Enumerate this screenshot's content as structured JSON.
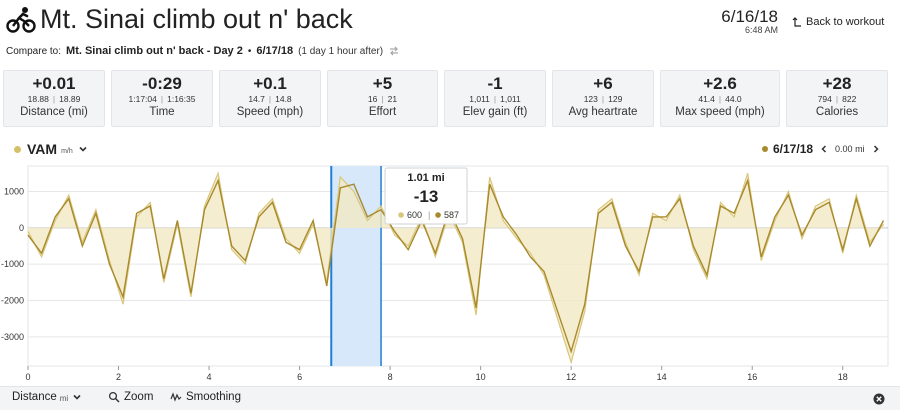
{
  "header": {
    "title": "Mt. Sinai climb out n' back",
    "date": "6/16/18",
    "time": "6:48 AM",
    "back_label": "Back to workout",
    "title_icon": "cyclist-icon",
    "back_icon": "return-arrow-icon"
  },
  "compare": {
    "label": "Compare to:",
    "workout": "Mt. Sinai climb out n' back - Day 2",
    "separator": "•",
    "date": "6/17/18",
    "note": "(1 day 1 hour after)",
    "swap_icon": "swap-icon"
  },
  "stats": [
    {
      "delta": "+0.01",
      "a": "18.88",
      "b": "18.89",
      "label": "Distance (mi)"
    },
    {
      "delta": "-0:29",
      "a": "1:17:04",
      "b": "1:16:35",
      "label": "Time"
    },
    {
      "delta": "+0.1",
      "a": "14.7",
      "b": "14.8",
      "label": "Speed (mph)"
    },
    {
      "delta": "+5",
      "a": "16",
      "b": "21",
      "label": "Effort"
    },
    {
      "delta": "-1",
      "a": "1,011",
      "b": "1,011",
      "label": "Elev gain (ft)"
    },
    {
      "delta": "+6",
      "a": "123",
      "b": "129",
      "label": "Avg heartrate"
    },
    {
      "delta": "+2.6",
      "a": "41.4",
      "b": "44.0",
      "label": "Max speed (mph)"
    },
    {
      "delta": "+28",
      "a": "794",
      "b": "822",
      "label": "Calories"
    }
  ],
  "metric": {
    "name": "VAM",
    "unit": "m/h",
    "chevron_icon": "chevron-down-icon"
  },
  "compare_nav": {
    "date": "6/17/18",
    "offset": "0.00 mi",
    "prev_icon": "chevron-left-icon",
    "next_icon": "chevron-right-icon"
  },
  "colors": {
    "series_a": "#d9c67a",
    "series_b": "#a88a2d",
    "fill": "#f3e9c4",
    "selection": "#d7e8fb",
    "selection_edge": "#1e7fd6"
  },
  "chart_data": {
    "type": "area",
    "xlabel": "",
    "ylabel": "",
    "xlim": [
      0,
      19
    ],
    "ylim": [
      -3800,
      1700
    ],
    "x_ticks": [
      0,
      2,
      4,
      6,
      8,
      10,
      12,
      14,
      16,
      18
    ],
    "y_ticks": [
      1000,
      0,
      -1000,
      -2000,
      -3000
    ],
    "grid": true,
    "selection": {
      "start": 6.7,
      "end": 7.8
    },
    "tooltip": {
      "distance": "1.01 mi",
      "delta": "-13",
      "a": "600",
      "b": "587"
    },
    "series": [
      {
        "x": [
          0,
          0.3,
          0.6,
          0.9,
          1.2,
          1.5,
          1.8,
          2.1,
          2.4,
          2.7,
          3,
          3.3,
          3.6,
          3.9,
          4.2,
          4.5,
          4.8,
          5.1,
          5.4,
          5.7,
          6,
          6.3,
          6.6,
          6.9,
          7.2,
          7.5,
          7.8,
          8.1,
          8.4,
          8.7,
          9,
          9.3,
          9.6,
          9.9,
          10.2,
          10.5,
          10.8,
          11.1,
          11.4,
          11.7,
          12,
          12.3,
          12.6,
          12.9,
          13.2,
          13.5,
          13.8,
          14.1,
          14.4,
          14.7,
          15,
          15.3,
          15.6,
          15.9,
          16.2,
          16.5,
          16.8,
          17.1,
          17.4,
          17.7,
          18,
          18.3,
          18.6,
          18.9
        ],
        "values": [
          -100,
          -800,
          200,
          900,
          -400,
          500,
          -900,
          -2100,
          300,
          700,
          -1500,
          100,
          -1900,
          600,
          1500,
          -600,
          -1000,
          400,
          800,
          -300,
          -700,
          100,
          -1500,
          1400,
          1000,
          200,
          600,
          -200,
          -500,
          300,
          -800,
          400,
          -400,
          -2400,
          1400,
          200,
          -300,
          -700,
          -1300,
          -2500,
          -3700,
          -2300,
          500,
          800,
          -400,
          -1300,
          400,
          200,
          900,
          -600,
          -1400,
          700,
          300,
          1500,
          -900,
          200,
          1000,
          -300,
          600,
          800,
          -700,
          900,
          -400,
          100
        ]
      },
      {
        "x": [
          0,
          0.3,
          0.6,
          0.9,
          1.2,
          1.5,
          1.8,
          2.1,
          2.4,
          2.7,
          3,
          3.3,
          3.6,
          3.9,
          4.2,
          4.5,
          4.8,
          5.1,
          5.4,
          5.7,
          6,
          6.3,
          6.6,
          6.9,
          7.2,
          7.5,
          7.8,
          8.1,
          8.4,
          8.7,
          9,
          9.3,
          9.6,
          9.9,
          10.2,
          10.5,
          10.8,
          11.1,
          11.4,
          11.7,
          12,
          12.3,
          12.6,
          12.9,
          13.2,
          13.5,
          13.8,
          14.1,
          14.4,
          14.7,
          15,
          15.3,
          15.6,
          15.9,
          16.2,
          16.5,
          16.8,
          17.1,
          17.4,
          17.7,
          18,
          18.3,
          18.6,
          18.9
        ],
        "values": [
          -200,
          -700,
          300,
          800,
          -500,
          400,
          -1000,
          -1900,
          400,
          600,
          -1400,
          200,
          -1800,
          500,
          1300,
          -500,
          -900,
          300,
          700,
          -400,
          -600,
          200,
          -1600,
          1100,
          1200,
          300,
          500,
          -100,
          -600,
          200,
          -700,
          500,
          -300,
          -2200,
          1200,
          300,
          -200,
          -800,
          -1200,
          -2300,
          -3400,
          -2100,
          400,
          700,
          -500,
          -1200,
          300,
          300,
          800,
          -500,
          -1300,
          600,
          400,
          1300,
          -800,
          300,
          900,
          -200,
          500,
          700,
          -600,
          800,
          -500,
          200
        ]
      }
    ]
  },
  "toolbar": {
    "axis_label": "Distance",
    "axis_unit": "mi",
    "axis_chevron_icon": "chevron-down-icon",
    "zoom_label": "Zoom",
    "zoom_icon": "magnifier-icon",
    "smoothing_label": "Smoothing",
    "smoothing_icon": "wave-icon",
    "close_icon": "close-circle-icon"
  }
}
